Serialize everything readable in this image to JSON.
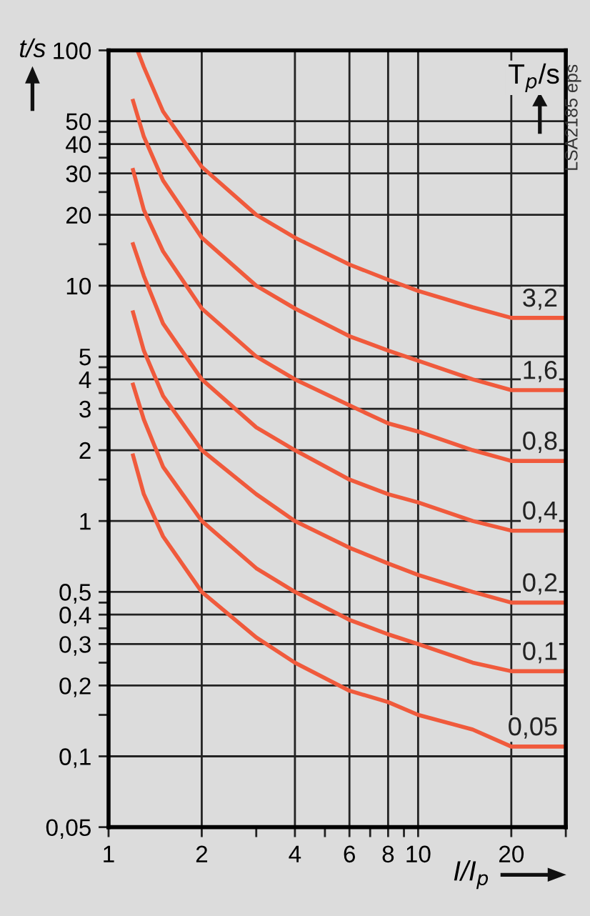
{
  "chart_data": {
    "type": "line",
    "xlabel": "I/I$_{p}$",
    "ylabel": "t/s",
    "legend_title": "T$_{p}$/s",
    "log": "xy",
    "grid": true,
    "legend": false,
    "marker": "none",
    "line_style": "solid",
    "annotations": [
      "LSA2185 eps"
    ],
    "x": [
      1.2,
      1.3,
      1.5,
      2,
      3,
      4,
      6,
      8,
      10,
      15,
      20,
      30
    ],
    "xlim": [
      1,
      30
    ],
    "ylim": [
      0.05,
      100
    ],
    "xticks": [
      1,
      2,
      {
        "value": 3,
        "label": null
      },
      4,
      {
        "value": 5,
        "label": null
      },
      6,
      {
        "value": 7,
        "label": null
      },
      8,
      {
        "value": 9,
        "label": null
      },
      10,
      20,
      {
        "value": 30,
        "label": null
      }
    ],
    "yticks": [
      {
        "value": 0.05,
        "label": "0,05"
      },
      {
        "value": 0.1,
        "label": "0,1"
      },
      {
        "value": 0.15,
        "label": null
      },
      {
        "value": 0.2,
        "label": "0,2"
      },
      {
        "value": 0.25,
        "label": null
      },
      {
        "value": 0.3,
        "label": "0,3"
      },
      {
        "value": 0.35,
        "label": null
      },
      {
        "value": 0.4,
        "label": "0,4"
      },
      {
        "value": 0.45,
        "label": null
      },
      {
        "value": 0.5,
        "label": "0,5"
      },
      1,
      {
        "value": 1.5,
        "label": null
      },
      2,
      {
        "value": 2.5,
        "label": null
      },
      3,
      {
        "value": 3.5,
        "label": null
      },
      4,
      {
        "value": 4.5,
        "label": null
      },
      5,
      10,
      {
        "value": 15,
        "label": null
      },
      20,
      {
        "value": 25,
        "label": null
      },
      30,
      {
        "value": 35,
        "label": null
      },
      40,
      {
        "value": 45,
        "label": null
      },
      50,
      100
    ],
    "series": [
      {
        "name": "3,2",
        "color": "#f05a3c",
        "x": [
          1.24,
          1.3,
          1.5,
          2,
          3,
          4,
          6,
          8,
          10,
          15,
          20,
          30
        ],
        "values": [
          100,
          85,
          55,
          32,
          20,
          16,
          12.3,
          10.6,
          9.5,
          8.1,
          7.3,
          7.3
        ]
      },
      {
        "name": "1,6",
        "color": "#f05a3c",
        "values": [
          61,
          43,
          28,
          16,
          10,
          8,
          6.1,
          5.3,
          4.8,
          4.0,
          3.6,
          3.6
        ]
      },
      {
        "name": "0,8",
        "color": "#f05a3c",
        "values": [
          31,
          21,
          14,
          8,
          5,
          4,
          3.1,
          2.6,
          2.4,
          2.0,
          1.8,
          1.8
        ]
      },
      {
        "name": "0,4",
        "color": "#f05a3c",
        "values": [
          15,
          11,
          6.9,
          4,
          2.5,
          2,
          1.5,
          1.3,
          1.2,
          1.0,
          0.91,
          0.91
        ]
      },
      {
        "name": "0,2",
        "color": "#f05a3c",
        "values": [
          7.7,
          5.3,
          3.4,
          2,
          1.3,
          1,
          0.77,
          0.66,
          0.59,
          0.5,
          0.45,
          0.45
        ]
      },
      {
        "name": "0,1",
        "color": "#f05a3c",
        "values": [
          3.8,
          2.7,
          1.7,
          1,
          0.63,
          0.5,
          0.38,
          0.33,
          0.3,
          0.25,
          0.23,
          0.23
        ]
      },
      {
        "name": "0,05",
        "color": "#f05a3c",
        "values": [
          1.9,
          1.3,
          0.86,
          0.5,
          0.32,
          0.25,
          0.19,
          0.17,
          0.15,
          0.13,
          0.11,
          0.11
        ]
      }
    ]
  }
}
